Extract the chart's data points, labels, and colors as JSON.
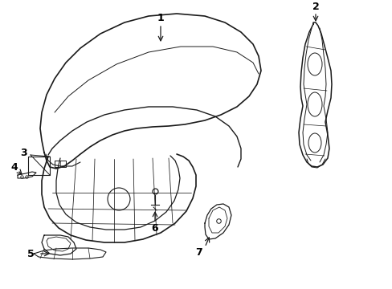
{
  "background": "#ffffff",
  "line_color": "#1a1a1a",
  "figsize": [
    4.89,
    3.6
  ],
  "dpi": 100,
  "xlim": [
    0,
    489
  ],
  "ylim": [
    0,
    360
  ]
}
